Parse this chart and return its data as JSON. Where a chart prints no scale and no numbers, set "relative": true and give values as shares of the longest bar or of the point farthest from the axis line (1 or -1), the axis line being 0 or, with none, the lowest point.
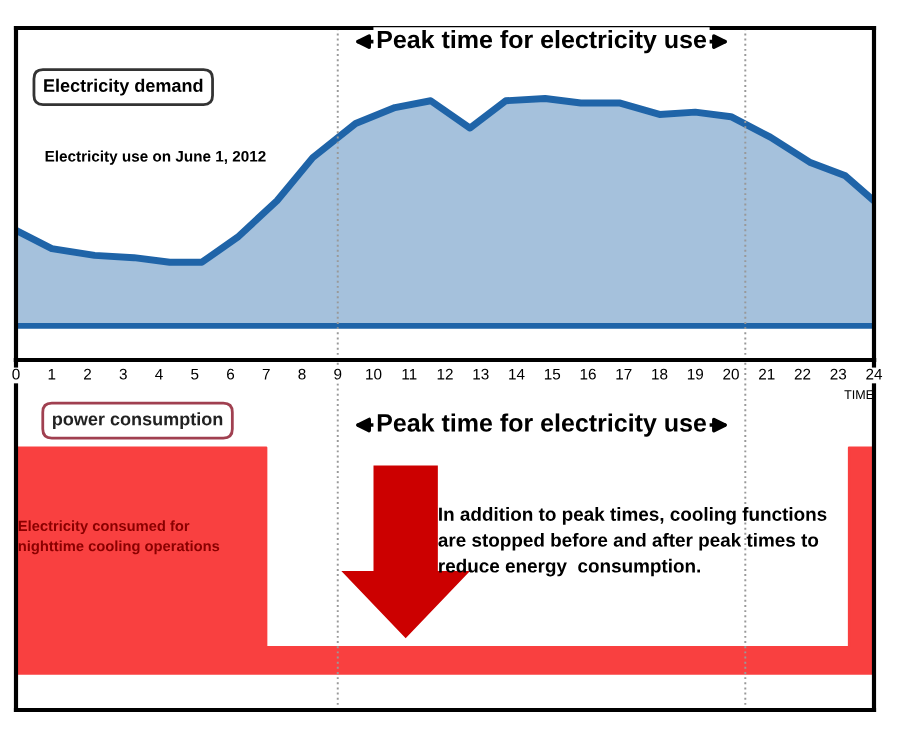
{
  "chart_data": [
    {
      "type": "area",
      "relative": true,
      "x": [
        0,
        1,
        2.2,
        3.3,
        4.3,
        5.2,
        6.2,
        7.3,
        8.3,
        9.5,
        10.6,
        11.6,
        12.7,
        13.7,
        14.8,
        15.8,
        16.9,
        18,
        19,
        20,
        21.1,
        22.2,
        23.2,
        24
      ],
      "series": [
        {
          "color": "#1f64a8",
          "values": [
            0.42,
            0.34,
            0.31,
            0.3,
            0.28,
            0.28,
            0.39,
            0.55,
            0.74,
            0.89,
            0.96,
            0.99,
            0.87,
            0.99,
            1,
            0.98,
            0.98,
            0.93,
            0.94,
            0.92,
            0.83,
            0.72,
            0.66,
            0.55
          ]
        }
      ],
      "xlim": [
        0,
        24
      ],
      "xticks": [
        0,
        1,
        2,
        3,
        4,
        5,
        6,
        7,
        8,
        9,
        10,
        11,
        12,
        13,
        14,
        15,
        16,
        17,
        18,
        19,
        20,
        21,
        22,
        23,
        24
      ],
      "xlabel": "TIME",
      "annotations": [
        "Electricity demand",
        "Electricity use on June 1, 2012",
        "Peak time for electricity use"
      ],
      "ref_lines": [
        {
          "axis": "x",
          "value": 9,
          "color": "#999999",
          "line_style": "dotted"
        },
        {
          "axis": "x",
          "value": 20.4,
          "color": "#999999",
          "line_style": "dotted"
        }
      ]
    },
    {
      "type": "area",
      "relative": true,
      "x": [
        0,
        7,
        7,
        23.3,
        23.3,
        24
      ],
      "series": [
        {
          "color": "#f94040",
          "values": [
            1,
            1,
            0.11,
            0.11,
            1,
            1
          ]
        }
      ],
      "xlim": [
        0,
        24
      ],
      "tick_labels": false,
      "annotations": [
        "power consumption",
        "Peak time for electricity use",
        "Electricity consumed for\nnighttime cooling operations",
        "In addition to peak times, cooling functions\nare stopped before and after peak times to\nreduce energy  consumption."
      ],
      "ref_lines": [
        {
          "axis": "x",
          "value": 9,
          "color": "#999999",
          "line_style": "dotted"
        },
        {
          "axis": "x",
          "value": 20.4,
          "color": "#999999",
          "line_style": "dotted"
        }
      ]
    }
  ]
}
